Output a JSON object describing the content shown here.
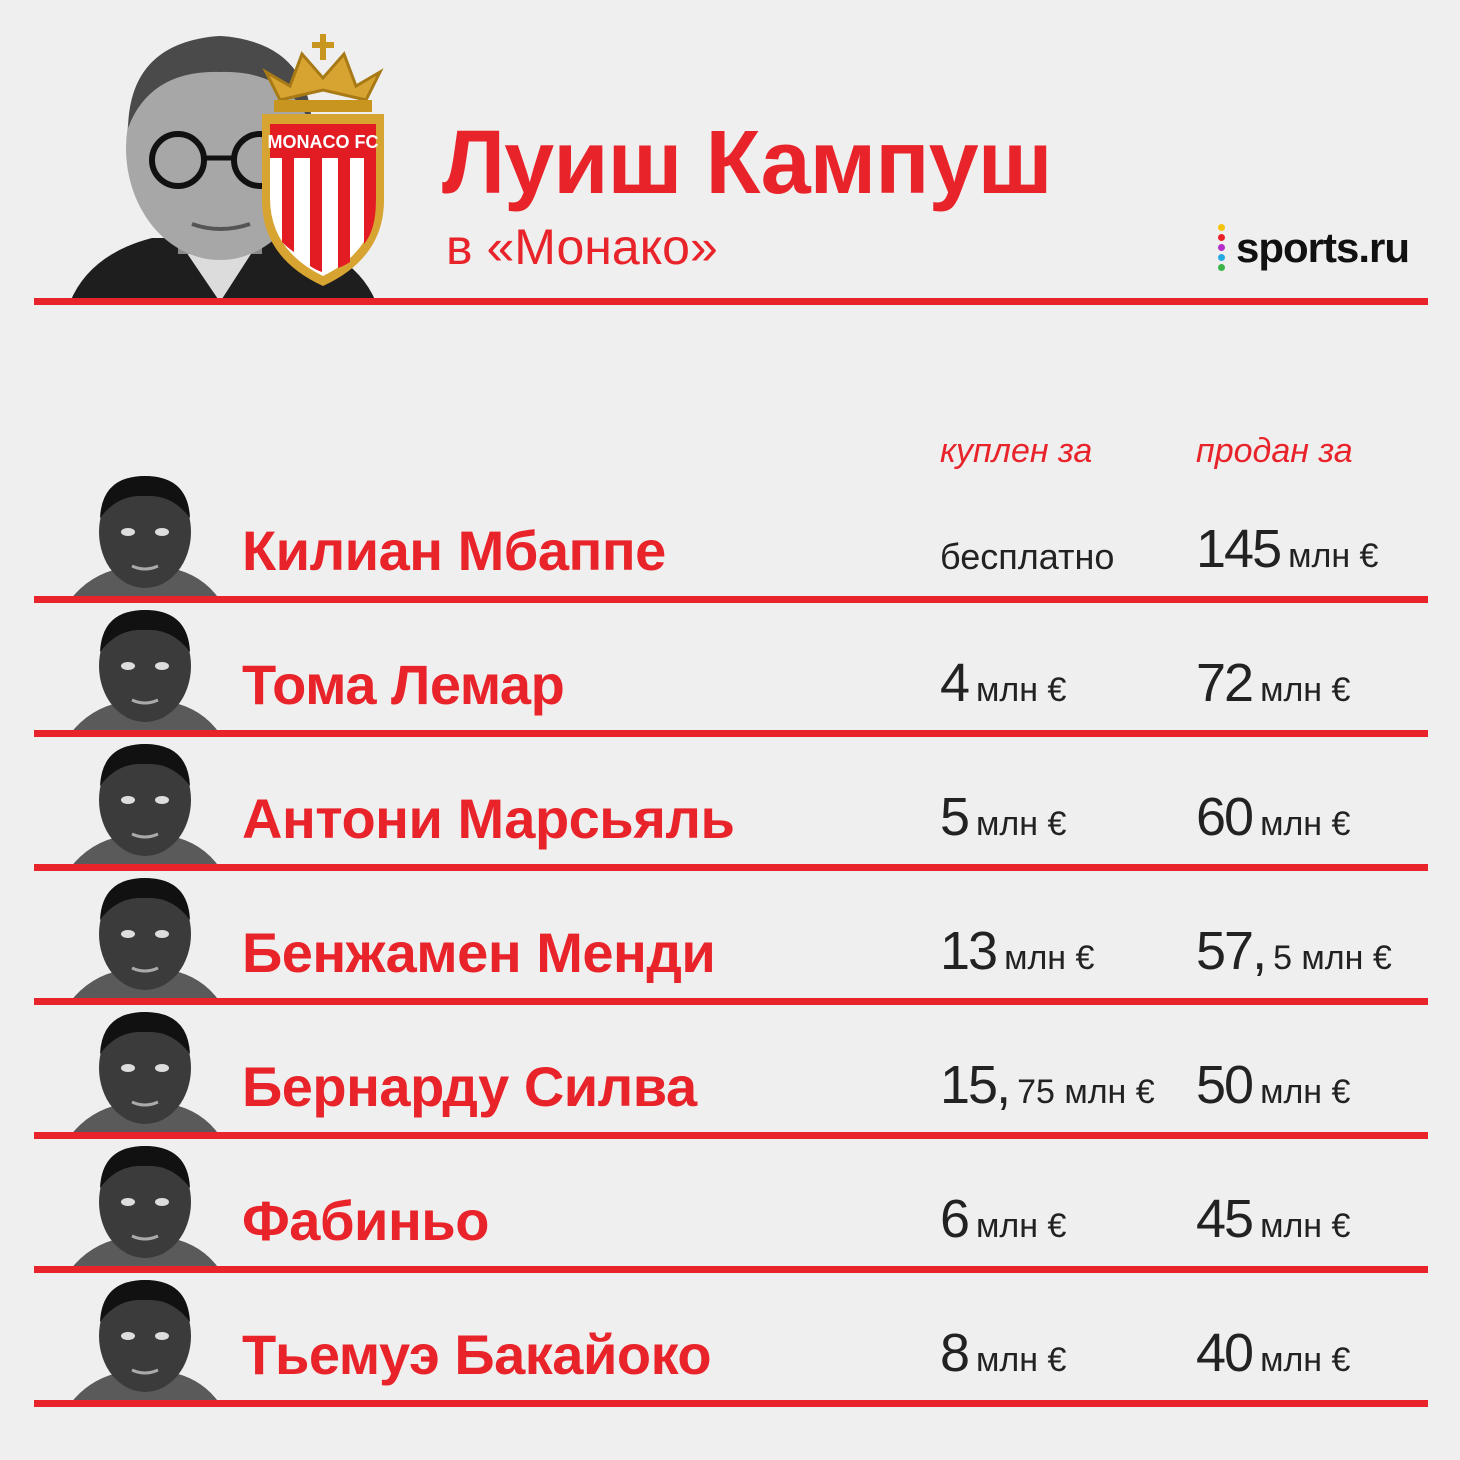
{
  "header": {
    "title": "Луиш Кампуш",
    "subtitle": "в «Монако»",
    "crest_text": "MONACO FC",
    "brand": "sports.ru"
  },
  "columns": {
    "bought": "куплен за",
    "sold": "продан за"
  },
  "colors": {
    "accent": "#e8232a",
    "background": "#efefef"
  },
  "players": [
    {
      "name": "Килиан Мбаппе",
      "bought_main": "",
      "bought_unit": "",
      "bought_text": "бесплатно",
      "sold_main": "145",
      "sold_unit": "млн €"
    },
    {
      "name": "Тома Лемар",
      "bought_main": "4",
      "bought_unit": "млн €",
      "bought_text": "",
      "sold_main": "72",
      "sold_unit": "млн €"
    },
    {
      "name": "Антони Марсьяль",
      "bought_main": "5",
      "bought_unit": "млн €",
      "bought_text": "",
      "sold_main": "60",
      "sold_unit": "млн €"
    },
    {
      "name": "Бенжамен Менди",
      "bought_main": "13",
      "bought_unit": "млн €",
      "bought_text": "",
      "sold_main": "57,",
      "sold_unit": "5 млн €"
    },
    {
      "name": "Бернарду Силва",
      "bought_main": "15,",
      "bought_unit": "75 млн €",
      "bought_text": "",
      "sold_main": "50",
      "sold_unit": "млн €"
    },
    {
      "name": "Фабиньо",
      "bought_main": "6",
      "bought_unit": "млн €",
      "bought_text": "",
      "sold_main": "45",
      "sold_unit": "млн €"
    },
    {
      "name": "Тьемуэ Бакайоко",
      "bought_main": "8",
      "bought_unit": "млн €",
      "bought_text": "",
      "sold_main": "40",
      "sold_unit": "млн €"
    }
  ]
}
